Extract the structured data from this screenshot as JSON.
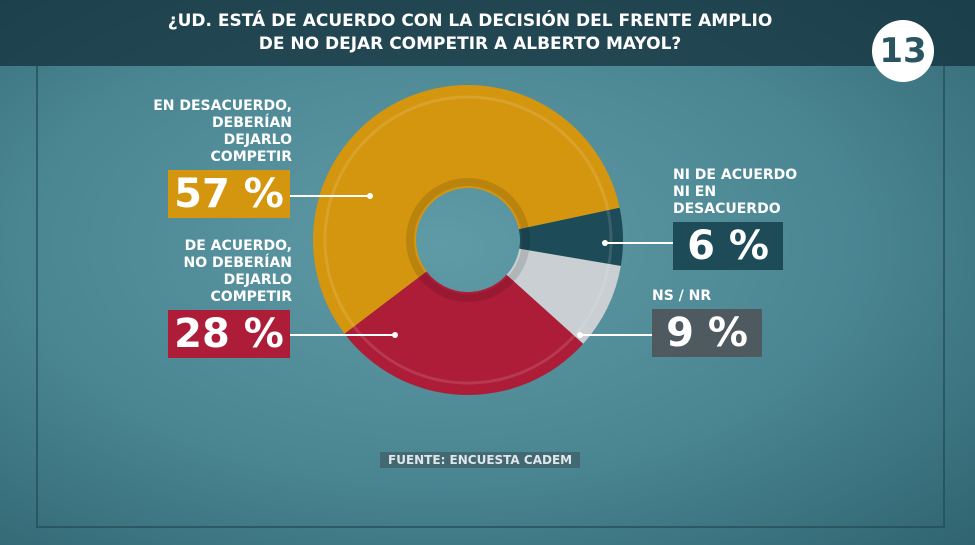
{
  "channel_logo": "13",
  "chart_data": {
    "type": "donut",
    "title": "¿UD. ESTÁ DE ACUERDO CON LA DECISIÓN DEL FRENTE AMPLIO\nDE NO DEJAR COMPETIR A ALBERTO MAYOL?",
    "categories": [
      "EN DESACUERDO,\nDEBERÍAN DEJARLO\nCOMPETIR",
      "DE ACUERDO,\nNO DEBERÍAN\nDEJARLO COMPETIR",
      "NS / NR",
      "NI DE ACUERDO\nNI EN DESACUERDO"
    ],
    "values": [
      57,
      28,
      9,
      6
    ],
    "value_labels": [
      "57 %",
      "28 %",
      "9 %",
      "6 %"
    ],
    "colors": [
      "#d4960f",
      "#ad1d38",
      "#c9cfd2",
      "#1e4b58"
    ],
    "source": "FUENTE: ENCUESTA CADEM"
  }
}
